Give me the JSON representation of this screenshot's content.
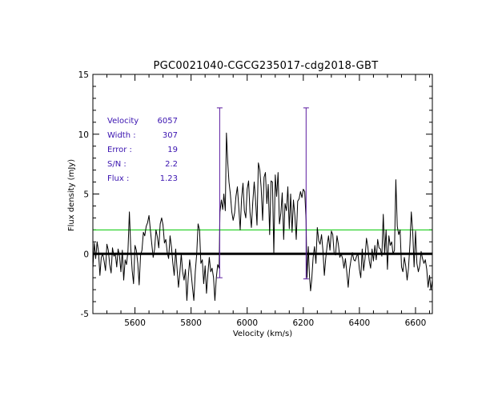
{
  "chart_data": {
    "type": "line",
    "title": "PGC0021040-CGCG235017-cdg2018-GBT",
    "xlabel": "Velocity (km/s)",
    "ylabel": "Flux density (mJy)",
    "xlim": [
      5450,
      6660
    ],
    "ylim": [
      -5,
      15
    ],
    "xticks": [
      5600,
      5800,
      6000,
      6200,
      6400,
      6600
    ],
    "yticks": [
      -5,
      0,
      5,
      10,
      15
    ],
    "colors": {
      "spectrum": "#000000",
      "zero_line": "#000000",
      "threshold": "#00c800",
      "markers": "#5a1aa0",
      "annotations": "#3a13b0"
    },
    "threshold_level": 2.0,
    "zero_level": 0,
    "velocity_markers": [
      {
        "velocity": 5902,
        "y_low": -2.0,
        "y_high": 12.2
      },
      {
        "velocity": 6210,
        "y_low": -2.1,
        "y_high": 12.2
      }
    ],
    "annotations": [
      {
        "label": "Velocity",
        "value": "6057"
      },
      {
        "label": "Width :",
        "value": "307"
      },
      {
        "label": "Error :",
        "value": "19"
      },
      {
        "label": "S/N :",
        "value": "2.2"
      },
      {
        "label": "Flux :",
        "value": "1.23"
      }
    ],
    "series": [
      {
        "name": "spectrum",
        "points": [
          [
            5450,
            -1.2
          ],
          [
            5455,
            0.9
          ],
          [
            5460,
            -0.4
          ],
          [
            5465,
            1.0
          ],
          [
            5470,
            0.2
          ],
          [
            5475,
            -1.8
          ],
          [
            5480,
            -0.3
          ],
          [
            5485,
            0.0
          ],
          [
            5490,
            -0.6
          ],
          [
            5495,
            -1.4
          ],
          [
            5500,
            0.8
          ],
          [
            5505,
            0.3
          ],
          [
            5510,
            -0.9
          ],
          [
            5515,
            -1.6
          ],
          [
            5520,
            0.5
          ],
          [
            5525,
            -0.2
          ],
          [
            5530,
            0.0
          ],
          [
            5535,
            -1.1
          ],
          [
            5540,
            0.4
          ],
          [
            5545,
            -0.2
          ],
          [
            5550,
            -1.5
          ],
          [
            5555,
            0.3
          ],
          [
            5560,
            -2.2
          ],
          [
            5565,
            -0.5
          ],
          [
            5570,
            -0.9
          ],
          [
            5575,
            0.2
          ],
          [
            5580,
            3.5
          ],
          [
            5585,
            0.5
          ],
          [
            5590,
            -1.4
          ],
          [
            5595,
            -2.5
          ],
          [
            5600,
            0.7
          ],
          [
            5605,
            0.3
          ],
          [
            5610,
            -0.8
          ],
          [
            5615,
            -2.6
          ],
          [
            5620,
            -0.1
          ],
          [
            5625,
            0.3
          ],
          [
            5630,
            1.8
          ],
          [
            5635,
            1.5
          ],
          [
            5640,
            2.3
          ],
          [
            5645,
            2.6
          ],
          [
            5650,
            3.2
          ],
          [
            5655,
            2.0
          ],
          [
            5660,
            0.8
          ],
          [
            5665,
            -0.3
          ],
          [
            5670,
            0.4
          ],
          [
            5675,
            2.0
          ],
          [
            5680,
            1.4
          ],
          [
            5685,
            0.5
          ],
          [
            5690,
            2.5
          ],
          [
            5695,
            3.0
          ],
          [
            5700,
            2.4
          ],
          [
            5705,
            0.9
          ],
          [
            5710,
            1.2
          ],
          [
            5715,
            0.1
          ],
          [
            5720,
            -0.4
          ],
          [
            5725,
            1.5
          ],
          [
            5730,
            0.6
          ],
          [
            5735,
            -0.8
          ],
          [
            5740,
            -1.8
          ],
          [
            5745,
            0.4
          ],
          [
            5750,
            -1.2
          ],
          [
            5755,
            -2.8
          ],
          [
            5760,
            -1.6
          ],
          [
            5765,
            0.0
          ],
          [
            5770,
            -1.5
          ],
          [
            5775,
            -2.2
          ],
          [
            5780,
            -1.3
          ],
          [
            5785,
            -3.9
          ],
          [
            5790,
            -2.0
          ],
          [
            5795,
            -0.5
          ],
          [
            5800,
            -1.5
          ],
          [
            5805,
            -2.8
          ],
          [
            5810,
            -3.9
          ],
          [
            5815,
            -1.5
          ],
          [
            5820,
            0.0
          ],
          [
            5825,
            2.5
          ],
          [
            5830,
            2.0
          ],
          [
            5835,
            -0.8
          ],
          [
            5840,
            -0.5
          ],
          [
            5845,
            -2.5
          ],
          [
            5850,
            -1.0
          ],
          [
            5855,
            -3.3
          ],
          [
            5860,
            -1.6
          ],
          [
            5865,
            -0.3
          ],
          [
            5870,
            -1.5
          ],
          [
            5875,
            -1.2
          ],
          [
            5880,
            -2.0
          ],
          [
            5885,
            -3.9
          ],
          [
            5890,
            -2.0
          ],
          [
            5895,
            -0.9
          ],
          [
            5900,
            -1.2
          ],
          [
            5903,
            3.5
          ],
          [
            5908,
            4.5
          ],
          [
            5913,
            3.7
          ],
          [
            5917,
            5.0
          ],
          [
            5922,
            3.6
          ],
          [
            5926,
            10.1
          ],
          [
            5931,
            7.6
          ],
          [
            5935,
            6.0
          ],
          [
            5940,
            5.0
          ],
          [
            5945,
            3.5
          ],
          [
            5950,
            2.8
          ],
          [
            5955,
            3.4
          ],
          [
            5960,
            4.8
          ],
          [
            5965,
            5.6
          ],
          [
            5970,
            3.9
          ],
          [
            5975,
            2.0
          ],
          [
            5980,
            4.6
          ],
          [
            5985,
            5.9
          ],
          [
            5990,
            3.6
          ],
          [
            5995,
            3.0
          ],
          [
            6000,
            5.4
          ],
          [
            6005,
            6.1
          ],
          [
            6010,
            3.5
          ],
          [
            6015,
            2.2
          ],
          [
            6020,
            4.3
          ],
          [
            6025,
            6.0
          ],
          [
            6030,
            4.5
          ],
          [
            6035,
            2.4
          ],
          [
            6040,
            7.6
          ],
          [
            6045,
            7.0
          ],
          [
            6050,
            5.5
          ],
          [
            6055,
            2.8
          ],
          [
            6060,
            6.4
          ],
          [
            6065,
            6.8
          ],
          [
            6070,
            4.2
          ],
          [
            6075,
            5.8
          ],
          [
            6080,
            1.6
          ],
          [
            6085,
            6.1
          ],
          [
            6090,
            6.0
          ],
          [
            6095,
            0.0
          ],
          [
            6100,
            6.6
          ],
          [
            6105,
            4.8
          ],
          [
            6110,
            6.8
          ],
          [
            6115,
            2.5
          ],
          [
            6120,
            3.4
          ],
          [
            6125,
            5.1
          ],
          [
            6130,
            1.2
          ],
          [
            6135,
            4.2
          ],
          [
            6140,
            3.6
          ],
          [
            6145,
            5.6
          ],
          [
            6150,
            2.1
          ],
          [
            6155,
            5.0
          ],
          [
            6160,
            1.8
          ],
          [
            6165,
            4.5
          ],
          [
            6170,
            3.2
          ],
          [
            6175,
            1.2
          ],
          [
            6180,
            4.4
          ],
          [
            6185,
            4.6
          ],
          [
            6190,
            5.2
          ],
          [
            6195,
            4.7
          ],
          [
            6200,
            5.4
          ],
          [
            6205,
            5.2
          ],
          [
            6210,
            2.8
          ],
          [
            6213,
            -2.0
          ],
          [
            6218,
            0.6
          ],
          [
            6222,
            -1.8
          ],
          [
            6226,
            -3.1
          ],
          [
            6230,
            -2.2
          ],
          [
            6235,
            -0.3
          ],
          [
            6240,
            0.6
          ],
          [
            6245,
            -0.8
          ],
          [
            6250,
            2.2
          ],
          [
            6255,
            1.1
          ],
          [
            6260,
            0.8
          ],
          [
            6265,
            1.6
          ],
          [
            6270,
            0.3
          ],
          [
            6275,
            -1.8
          ],
          [
            6280,
            -0.4
          ],
          [
            6285,
            0.7
          ],
          [
            6290,
            1.5
          ],
          [
            6295,
            0.3
          ],
          [
            6300,
            1.9
          ],
          [
            6305,
            1.6
          ],
          [
            6310,
            0.0
          ],
          [
            6315,
            -0.1
          ],
          [
            6320,
            1.5
          ],
          [
            6325,
            0.8
          ],
          [
            6330,
            -0.3
          ],
          [
            6335,
            0.0
          ],
          [
            6340,
            -0.4
          ],
          [
            6345,
            -1.2
          ],
          [
            6350,
            -0.4
          ],
          [
            6355,
            -1.5
          ],
          [
            6360,
            -2.8
          ],
          [
            6365,
            -1.3
          ],
          [
            6370,
            -0.5
          ],
          [
            6375,
            0.1
          ],
          [
            6380,
            -0.5
          ],
          [
            6385,
            -0.6
          ],
          [
            6390,
            -0.2
          ],
          [
            6395,
            0.0
          ],
          [
            6400,
            -1.3
          ],
          [
            6405,
            -2.0
          ],
          [
            6410,
            0.4
          ],
          [
            6415,
            -1.4
          ],
          [
            6420,
            -0.4
          ],
          [
            6425,
            1.3
          ],
          [
            6430,
            0.6
          ],
          [
            6435,
            -0.6
          ],
          [
            6440,
            -1.2
          ],
          [
            6445,
            0.4
          ],
          [
            6450,
            -0.6
          ],
          [
            6455,
            0.7
          ],
          [
            6460,
            -0.5
          ],
          [
            6465,
            1.2
          ],
          [
            6470,
            0.5
          ],
          [
            6475,
            0.4
          ],
          [
            6480,
            -0.2
          ],
          [
            6485,
            3.3
          ],
          [
            6490,
            0.0
          ],
          [
            6495,
            2.0
          ],
          [
            6500,
            -1.3
          ],
          [
            6505,
            1.5
          ],
          [
            6510,
            0.7
          ],
          [
            6515,
            1.0
          ],
          [
            6520,
            0.0
          ],
          [
            6525,
            0.3
          ],
          [
            6530,
            6.2
          ],
          [
            6535,
            2.3
          ],
          [
            6540,
            1.6
          ],
          [
            6545,
            2.0
          ],
          [
            6550,
            -1.1
          ],
          [
            6555,
            -1.5
          ],
          [
            6560,
            -0.3
          ],
          [
            6565,
            -1.0
          ],
          [
            6570,
            -2.2
          ],
          [
            6575,
            -1.2
          ],
          [
            6580,
            0.8
          ],
          [
            6585,
            3.5
          ],
          [
            6590,
            1.8
          ],
          [
            6595,
            -1.1
          ],
          [
            6600,
            1.9
          ],
          [
            6605,
            -0.8
          ],
          [
            6610,
            -1.5
          ],
          [
            6615,
            -1.0
          ],
          [
            6620,
            0.2
          ],
          [
            6625,
            -0.4
          ],
          [
            6630,
            -0.8
          ],
          [
            6635,
            -0.5
          ],
          [
            6640,
            -1.3
          ],
          [
            6645,
            -2.8
          ],
          [
            6650,
            -1.8
          ],
          [
            6655,
            -3.0
          ],
          [
            6660,
            -2.2
          ]
        ]
      }
    ]
  }
}
